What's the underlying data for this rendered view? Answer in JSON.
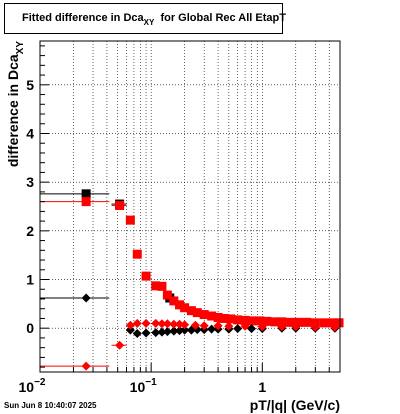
{
  "title": {
    "main": "Fitted difference in Dca",
    "subscript": "XY",
    "rest": "for Global Rec All EtapT"
  },
  "timestamp": "Sun Jun  8 10:40:07 2025",
  "colors": {
    "series_black": "#000000",
    "series_red": "#ff0000",
    "grid": "#000000"
  },
  "chart_data": {
    "type": "scatter",
    "xlabel": "pT/|q| (GeV/c)",
    "ylabel_main": "difference in Dca",
    "ylabel_sub": "XY",
    "xscale": "log",
    "xlim": [
      0.01,
      5.0
    ],
    "ylim": [
      -0.9,
      5.9
    ],
    "grid": true,
    "x_ticks": [
      {
        "value": 0.01,
        "base": "10",
        "exp": "−2"
      },
      {
        "value": 0.1,
        "base": "10",
        "exp": "−1"
      },
      {
        "value": 1,
        "base": "1",
        "exp": ""
      }
    ],
    "y_ticks": [
      0,
      1,
      2,
      3,
      4,
      5
    ],
    "series": [
      {
        "marker": "square",
        "color": "#000000",
        "points": [
          {
            "x": 0.026,
            "y": 2.76,
            "xlo": 0.01,
            "xhi": 0.042
          },
          {
            "x": 0.052,
            "y": 2.55,
            "xlo": 0.044,
            "xhi": 0.06
          },
          {
            "x": 0.147,
            "y": 0.62
          }
        ]
      },
      {
        "marker": "square",
        "color": "#ff0000",
        "points": [
          {
            "x": 0.026,
            "y": 2.6,
            "xlo": 0.01,
            "xhi": 0.042
          },
          {
            "x": 0.052,
            "y": 2.52,
            "xlo": 0.044,
            "xhi": 0.06
          },
          {
            "x": 0.065,
            "y": 2.22
          },
          {
            "x": 0.075,
            "y": 1.52
          },
          {
            "x": 0.09,
            "y": 1.07
          },
          {
            "x": 0.11,
            "y": 0.87
          },
          {
            "x": 0.125,
            "y": 0.86
          },
          {
            "x": 0.14,
            "y": 0.68
          },
          {
            "x": 0.16,
            "y": 0.56
          },
          {
            "x": 0.18,
            "y": 0.48
          },
          {
            "x": 0.2,
            "y": 0.42
          },
          {
            "x": 0.23,
            "y": 0.36
          },
          {
            "x": 0.26,
            "y": 0.32
          },
          {
            "x": 0.3,
            "y": 0.28
          },
          {
            "x": 0.35,
            "y": 0.25
          },
          {
            "x": 0.4,
            "y": 0.22
          },
          {
            "x": 0.45,
            "y": 0.2
          },
          {
            "x": 0.52,
            "y": 0.19
          },
          {
            "x": 0.6,
            "y": 0.17
          },
          {
            "x": 0.7,
            "y": 0.16
          },
          {
            "x": 0.8,
            "y": 0.15
          },
          {
            "x": 0.95,
            "y": 0.15
          },
          {
            "x": 1.1,
            "y": 0.14
          },
          {
            "x": 1.3,
            "y": 0.13
          },
          {
            "x": 1.5,
            "y": 0.13
          },
          {
            "x": 1.8,
            "y": 0.12
          },
          {
            "x": 2.1,
            "y": 0.12
          },
          {
            "x": 2.5,
            "y": 0.12
          },
          {
            "x": 3.0,
            "y": 0.11
          },
          {
            "x": 3.6,
            "y": 0.11
          },
          {
            "x": 4.3,
            "y": 0.11
          },
          {
            "x": 4.9,
            "y": 0.11
          }
        ]
      },
      {
        "marker": "diamond",
        "color": "#000000",
        "points": [
          {
            "x": 0.026,
            "y": 0.62,
            "xlo": 0.01,
            "xhi": 0.042
          },
          {
            "x": 0.065,
            "y": -0.04
          },
          {
            "x": 0.075,
            "y": -0.11
          },
          {
            "x": 0.09,
            "y": -0.1
          },
          {
            "x": 0.11,
            "y": -0.09
          },
          {
            "x": 0.125,
            "y": -0.08
          },
          {
            "x": 0.14,
            "y": -0.07
          },
          {
            "x": 0.16,
            "y": -0.06
          },
          {
            "x": 0.18,
            "y": -0.05
          },
          {
            "x": 0.2,
            "y": -0.04
          },
          {
            "x": 0.23,
            "y": -0.04
          },
          {
            "x": 0.26,
            "y": -0.03
          },
          {
            "x": 0.3,
            "y": -0.03
          },
          {
            "x": 0.35,
            "y": -0.02
          },
          {
            "x": 0.4,
            "y": -0.02
          },
          {
            "x": 0.5,
            "y": -0.02
          },
          {
            "x": 0.6,
            "y": -0.01
          },
          {
            "x": 0.8,
            "y": -0.01
          },
          {
            "x": 1.0,
            "y": -0.01
          },
          {
            "x": 1.5,
            "y": 0.0
          },
          {
            "x": 2.0,
            "y": 0.0
          },
          {
            "x": 3.0,
            "y": 0.0
          },
          {
            "x": 4.5,
            "y": 0.0
          }
        ]
      },
      {
        "marker": "diamond",
        "color": "#ff0000",
        "points": [
          {
            "x": 0.026,
            "y": -0.78,
            "xlo": 0.01,
            "xhi": 0.042
          },
          {
            "x": 0.052,
            "y": -0.35,
            "xlo": 0.044,
            "xhi": 0.06
          },
          {
            "x": 0.065,
            "y": 0.06
          },
          {
            "x": 0.075,
            "y": 0.1
          },
          {
            "x": 0.09,
            "y": 0.1
          },
          {
            "x": 0.11,
            "y": 0.1
          },
          {
            "x": 0.125,
            "y": 0.09
          },
          {
            "x": 0.14,
            "y": 0.09
          },
          {
            "x": 0.16,
            "y": 0.08
          },
          {
            "x": 0.18,
            "y": 0.08
          },
          {
            "x": 0.2,
            "y": 0.07
          },
          {
            "x": 0.25,
            "y": 0.06
          },
          {
            "x": 0.3,
            "y": 0.05
          },
          {
            "x": 0.4,
            "y": 0.05
          },
          {
            "x": 0.5,
            "y": 0.04
          },
          {
            "x": 0.7,
            "y": 0.04
          },
          {
            "x": 1.0,
            "y": 0.03
          },
          {
            "x": 1.5,
            "y": 0.03
          },
          {
            "x": 2.0,
            "y": 0.03
          },
          {
            "x": 3.0,
            "y": 0.02
          },
          {
            "x": 4.5,
            "y": 0.02
          }
        ]
      }
    ]
  }
}
